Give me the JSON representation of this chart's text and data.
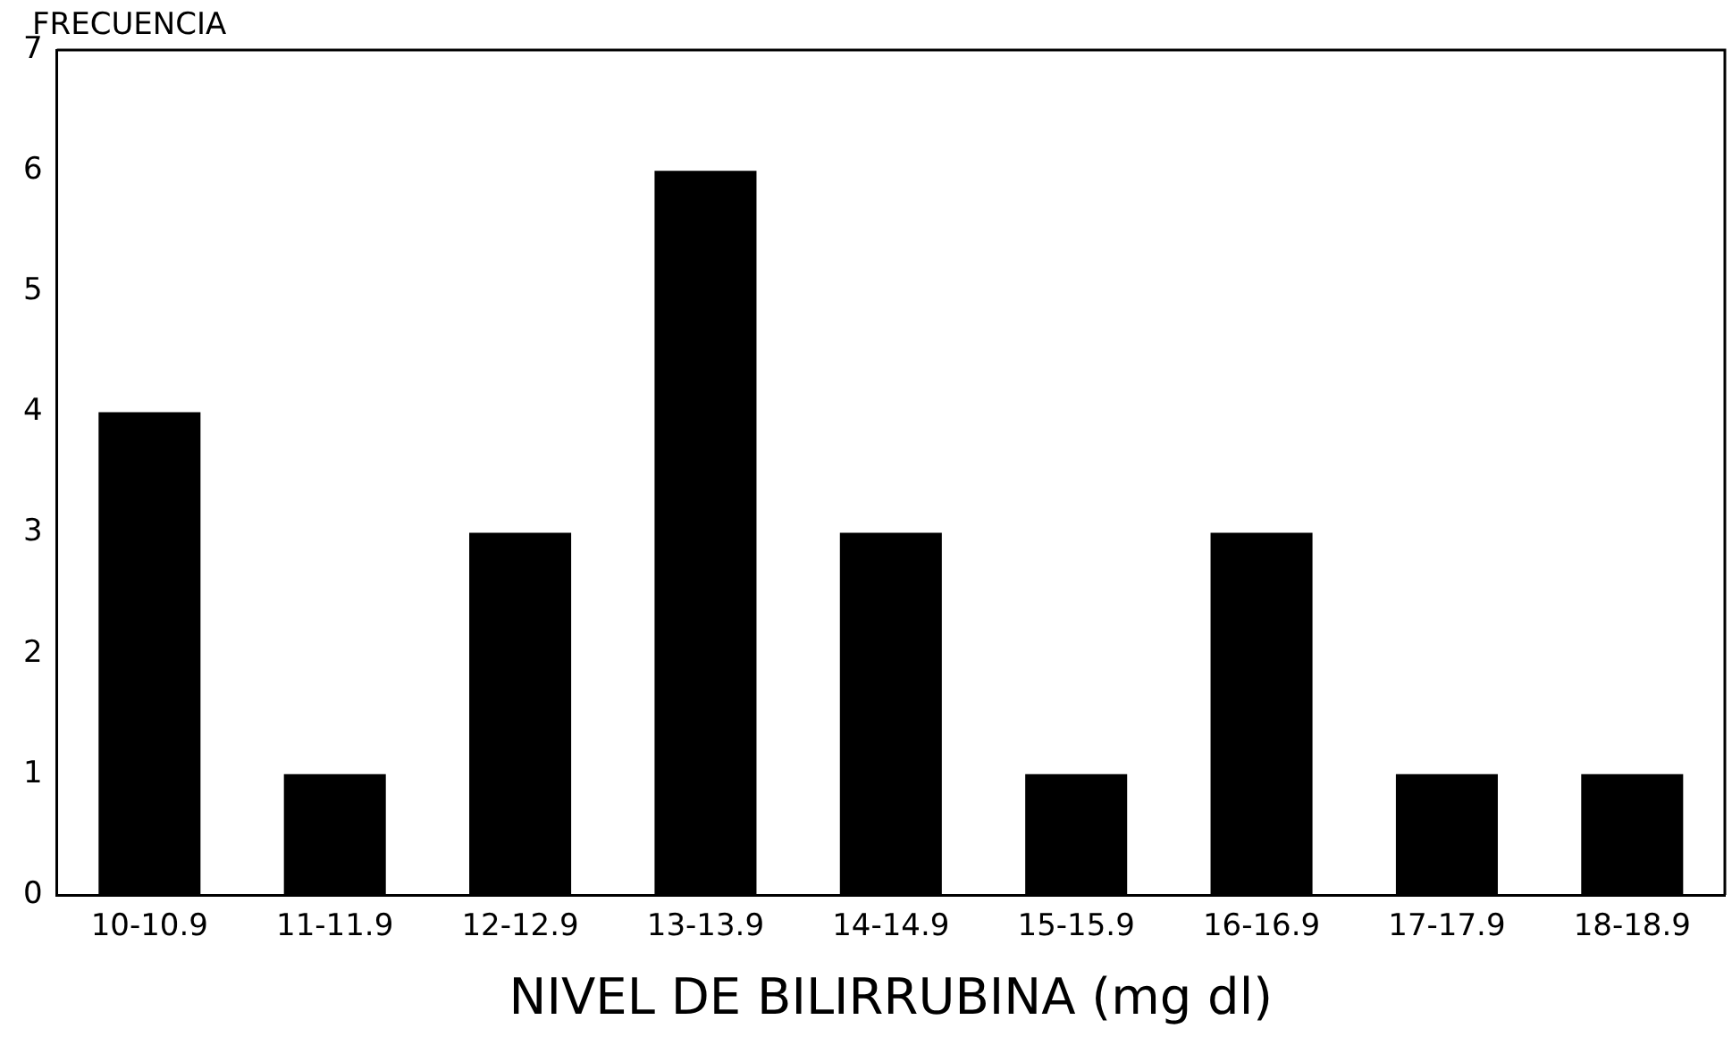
{
  "chart_data": {
    "type": "bar",
    "xlabel": "NIVEL DE BILIRRUBINA (mg dl)",
    "ylabel": "FRECUENCIA",
    "categories": [
      "10-10.9",
      "11-11.9",
      "12-12.9",
      "13-13.9",
      "14-14.9",
      "15-15.9",
      "16-16.9",
      "17-17.9",
      "18-18.9"
    ],
    "values": [
      4,
      1,
      3,
      6,
      3,
      1,
      3,
      1,
      1
    ],
    "color": "#000000",
    "ylim": [
      0,
      7
    ],
    "yticks": [
      0,
      1,
      2,
      3,
      4,
      5,
      6,
      7
    ],
    "grid": false,
    "legend": false
  }
}
